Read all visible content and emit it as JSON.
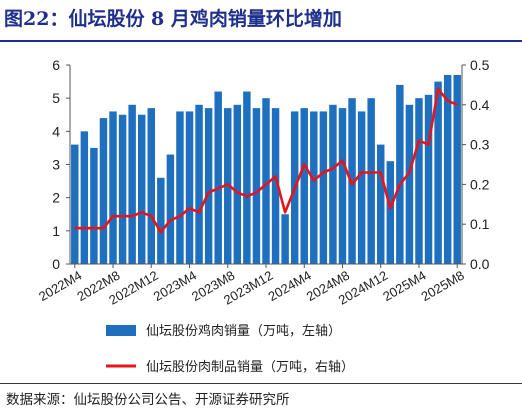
{
  "header": {
    "title": "图22：仙坛股份 8 月鸡肉销量环比增加"
  },
  "footer": {
    "source": "数据来源：仙坛股份公司公告、开源证券研究所"
  },
  "colors": {
    "bar": "#1f6fbf",
    "line": "#e8141b",
    "title": "#1f2f8c"
  },
  "chart_data": {
    "type": "bar",
    "categories": [
      "2022M4",
      "2022M5",
      "2022M6",
      "2022M7",
      "2022M8",
      "2022M9",
      "2022M10",
      "2022M11",
      "2022M12",
      "2023M1",
      "2023M2",
      "2023M3",
      "2023M4",
      "2023M5",
      "2023M6",
      "2023M7",
      "2023M8",
      "2023M9",
      "2023M10",
      "2023M11",
      "2023M12",
      "2024M1",
      "2024M2",
      "2024M3",
      "2024M4",
      "2024M5",
      "2024M6",
      "2024M7",
      "2024M8",
      "2024M9",
      "2024M10",
      "2024M11",
      "2024M12",
      "2025M1",
      "2025M2",
      "2025M3",
      "2025M4",
      "2025M5",
      "2025M6",
      "2025M7",
      "2025M8"
    ],
    "x_tick_labels": [
      "2022M4",
      "2022M8",
      "2022M12",
      "2023M4",
      "2023M8",
      "2023M12",
      "2024M4",
      "2024M8",
      "2024M12",
      "2025M4",
      "2025M8"
    ],
    "series": [
      {
        "name": "仙坛股份鸡肉销量（万吨，左轴）",
        "type": "bar",
        "axis": "left",
        "values": [
          3.6,
          4.0,
          3.5,
          4.4,
          4.6,
          4.5,
          4.8,
          4.5,
          4.7,
          2.6,
          3.3,
          4.6,
          4.6,
          4.8,
          4.7,
          5.2,
          4.7,
          4.8,
          5.2,
          4.7,
          5.0,
          4.7,
          1.5,
          4.6,
          4.7,
          4.6,
          4.6,
          4.8,
          4.7,
          5.0,
          4.6,
          5.0,
          3.6,
          3.1,
          5.4,
          4.8,
          5.0,
          5.1,
          5.5,
          5.7,
          5.7
        ]
      },
      {
        "name": "仙坛股份肉制品销量（万吨，右轴）",
        "type": "line",
        "axis": "right",
        "values": [
          0.09,
          0.09,
          0.09,
          0.09,
          0.12,
          0.12,
          0.12,
          0.13,
          0.12,
          0.08,
          0.11,
          0.12,
          0.14,
          0.13,
          0.18,
          0.19,
          0.2,
          0.18,
          0.17,
          0.18,
          0.2,
          0.22,
          0.13,
          0.19,
          0.25,
          0.21,
          0.23,
          0.24,
          0.26,
          0.2,
          0.23,
          0.23,
          0.23,
          0.14,
          0.2,
          0.23,
          0.31,
          0.3,
          0.44,
          0.41,
          0.4
        ]
      }
    ],
    "y_left": {
      "min": 0,
      "max": 6,
      "ticks": [
        "0",
        "1",
        "2",
        "3",
        "4",
        "5",
        "6"
      ]
    },
    "y_right": {
      "min": 0,
      "max": 0.5,
      "ticks": [
        "0.0",
        "0.1",
        "0.2",
        "0.3",
        "0.4",
        "0.5"
      ]
    },
    "legend": {
      "placement": "bottom"
    },
    "grid": false
  }
}
